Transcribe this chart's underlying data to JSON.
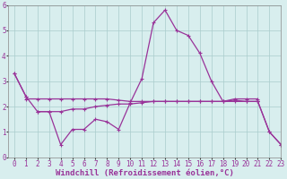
{
  "x": [
    0,
    1,
    2,
    3,
    4,
    5,
    6,
    7,
    8,
    9,
    10,
    11,
    12,
    13,
    14,
    15,
    16,
    17,
    18,
    19,
    20,
    21,
    22,
    23
  ],
  "line_zigzag": [
    3.3,
    2.4,
    1.8,
    1.8,
    0.5,
    1.1,
    1.1,
    1.5,
    1.4,
    1.1,
    2.15,
    3.1,
    5.3,
    5.8,
    5.0,
    4.8,
    4.1,
    3.0,
    2.2,
    2.25,
    2.2,
    2.2,
    1.0,
    0.5
  ],
  "line_flat": [
    null,
    2.3,
    2.3,
    2.3,
    2.3,
    2.3,
    2.3,
    2.3,
    2.3,
    2.25,
    2.2,
    2.2,
    2.2,
    2.2,
    2.2,
    2.2,
    2.2,
    2.2,
    2.2,
    2.3,
    2.3,
    2.3,
    null,
    null
  ],
  "line_diag_up": [
    null,
    null,
    1.8,
    1.8,
    1.8,
    1.9,
    1.9,
    2.0,
    2.05,
    2.1,
    2.1,
    2.15,
    2.2,
    2.2,
    2.2,
    2.2,
    2.2,
    2.2,
    2.2,
    2.2,
    2.2,
    2.2,
    null,
    null
  ],
  "line_diag_down": [
    3.3,
    2.4,
    null,
    null,
    null,
    null,
    null,
    null,
    null,
    null,
    null,
    null,
    null,
    null,
    null,
    null,
    null,
    null,
    null,
    null,
    null,
    2.2,
    1.0,
    0.5
  ],
  "bg_color": "#d8eeee",
  "line_color": "#993399",
  "grid_color": "#aacccc",
  "ylim": [
    0,
    6
  ],
  "xlim": [
    -0.5,
    23
  ],
  "yticks": [
    0,
    1,
    2,
    3,
    4,
    5,
    6
  ],
  "xticks": [
    0,
    1,
    2,
    3,
    4,
    5,
    6,
    7,
    8,
    9,
    10,
    11,
    12,
    13,
    14,
    15,
    16,
    17,
    18,
    19,
    20,
    21,
    22,
    23
  ],
  "xlabel": "Windchill (Refroidissement éolien,°C)",
  "xlabel_fontsize": 6.5,
  "tick_fontsize": 5.5,
  "linewidth": 0.9,
  "marker": "+",
  "markersize": 3.5,
  "markeredgewidth": 0.8
}
